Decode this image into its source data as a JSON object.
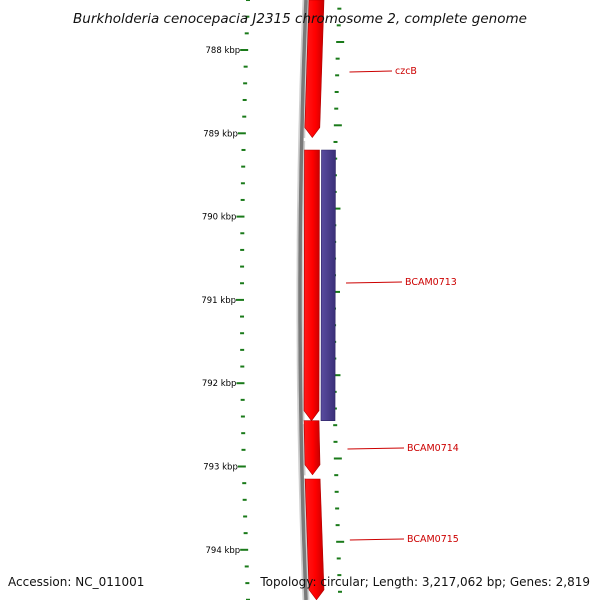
{
  "title": "Burkholderia cenocepacia J2315 chromosome 2, complete genome",
  "footer": {
    "accession": "Accession: NC_011001",
    "summary": "Topology: circular; Length: 3,217,062 bp; Genes: 2,819"
  },
  "ticks": [
    {
      "label": "788 kbp",
      "kb": 788
    },
    {
      "label": "789 kbp",
      "kb": 789
    },
    {
      "label": "790 kbp",
      "kb": 790
    },
    {
      "label": "791 kbp",
      "kb": 791
    },
    {
      "label": "792 kbp",
      "kb": 792
    },
    {
      "label": "793 kbp",
      "kb": 793
    },
    {
      "label": "794 kbp",
      "kb": 794
    }
  ],
  "genes": [
    {
      "name": "czcB",
      "start_kb": 787.4,
      "end_kb": 789.05,
      "strand": "forward",
      "track": "cds"
    },
    {
      "name": "",
      "start_kb": 789.2,
      "end_kb": 792.45,
      "strand": "forward",
      "track": "cds"
    },
    {
      "name": "BCAM0713",
      "start_kb": 789.2,
      "end_kb": 792.45,
      "strand": "forward",
      "track": "gene"
    },
    {
      "name": "BCAM0714",
      "start_kb": 792.45,
      "end_kb": 793.1,
      "strand": "forward",
      "track": "cds"
    },
    {
      "name": "BCAM0715",
      "start_kb": 793.15,
      "end_kb": 794.6,
      "strand": "forward",
      "track": "cds"
    }
  ],
  "colors": {
    "cds": "#ff0000",
    "gene_track": "#4b3d8f",
    "backbone": "#7a7a7a",
    "tick": "#1a7a1a",
    "label": "#cc0000",
    "partial_feature": "#8fd14f"
  }
}
